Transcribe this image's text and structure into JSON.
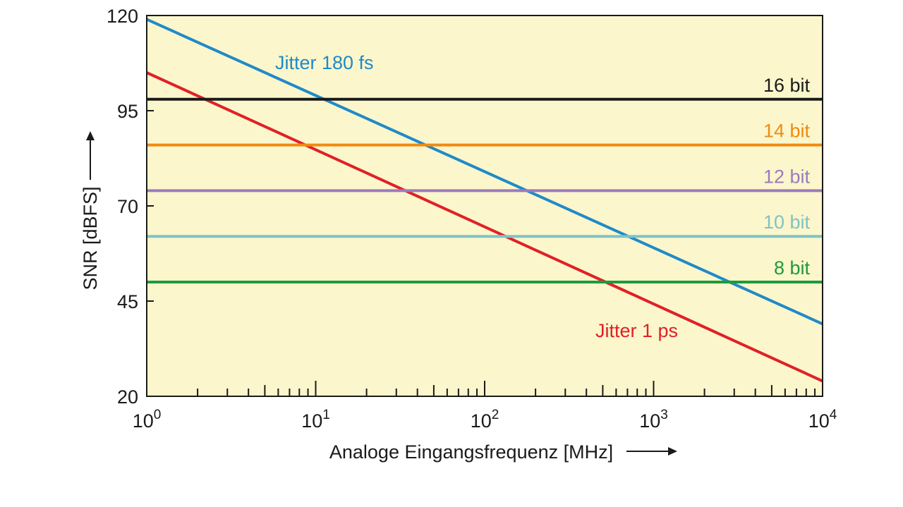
{
  "chart_data": {
    "type": "line",
    "title": "",
    "xlabel": "Analoge Eingangsfrequenz [MHz]",
    "ylabel": "SNR [dBFS]",
    "x_scale": "log",
    "xlim": [
      1,
      10000
    ],
    "ylim": [
      20,
      120
    ],
    "x_ticks": [
      {
        "value": 1,
        "base": "10",
        "exp": "0"
      },
      {
        "value": 10,
        "base": "10",
        "exp": "1"
      },
      {
        "value": 100,
        "base": "10",
        "exp": "2"
      },
      {
        "value": 1000,
        "base": "10",
        "exp": "3"
      },
      {
        "value": 10000,
        "base": "10",
        "exp": "4"
      }
    ],
    "y_ticks": [
      "20",
      "45",
      "70",
      "95",
      "120"
    ],
    "series": [
      {
        "name": "Jitter 180 fs",
        "kind": "sloped",
        "x": [
          1,
          10000
        ],
        "y": [
          119,
          39
        ],
        "color": "#1f8ac8"
      },
      {
        "name": "Jitter 1 ps",
        "kind": "sloped",
        "x": [
          1,
          10000
        ],
        "y": [
          105,
          24
        ],
        "color": "#e02027"
      },
      {
        "name": "16 bit",
        "kind": "level",
        "y": 98,
        "color": "#1a1a1a"
      },
      {
        "name": "14 bit",
        "kind": "level",
        "y": 86,
        "color": "#ef8b12"
      },
      {
        "name": "12 bit",
        "kind": "level",
        "y": 74,
        "color": "#9b7bbd"
      },
      {
        "name": "10 bit",
        "kind": "level",
        "y": 62,
        "color": "#7ec3c6"
      },
      {
        "name": "8 bit",
        "kind": "level",
        "y": 50,
        "color": "#1f9a3c"
      }
    ],
    "plot_background": "#fcf6cc",
    "grid": false
  }
}
